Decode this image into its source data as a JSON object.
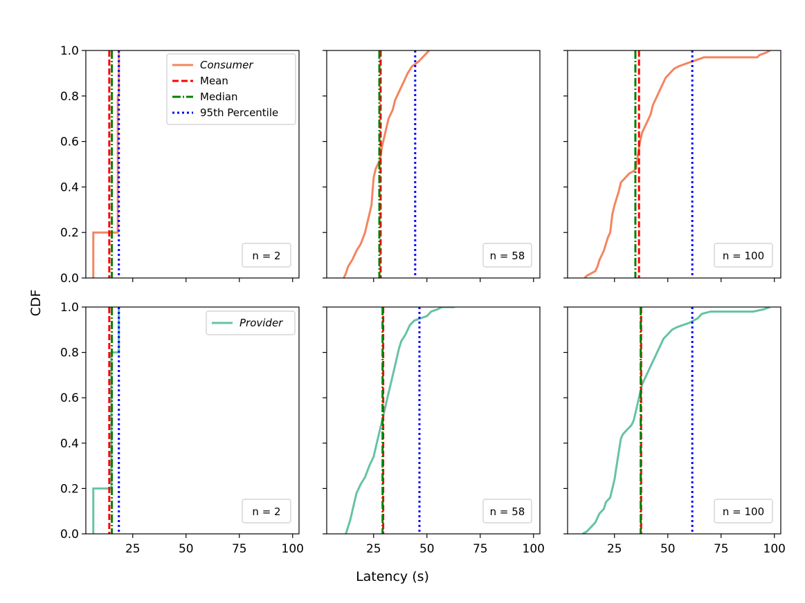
{
  "figure": {
    "ylabel": "CDF",
    "xlabel": "Latency (s)"
  },
  "colors": {
    "consumer": "#f4845f",
    "provider": "#66c2a5",
    "mean": "#ff0000",
    "median": "#008000",
    "p95": "#0000ff"
  },
  "chart_data": [
    {
      "type": "line",
      "series_name": "Consumer",
      "n_label": "n = 2",
      "xlim": [
        3,
        103
      ],
      "ylim": [
        0,
        1
      ],
      "xticks": [
        25,
        50,
        75,
        100
      ],
      "yticks": [
        0.0,
        0.2,
        0.4,
        0.6,
        0.8,
        1.0
      ],
      "cdf": [
        [
          6.5,
          0
        ],
        [
          6.5,
          0.2
        ],
        [
          18,
          0.2
        ],
        [
          18,
          0.8
        ],
        [
          18.5,
          0.8
        ],
        [
          18.5,
          1.0
        ]
      ],
      "mean": 14.0,
      "median": 15.2,
      "p95": 18.5,
      "legend": [
        "Consumer",
        "Mean",
        "Median",
        "95th Percentile"
      ]
    },
    {
      "type": "line",
      "series_name": "Consumer",
      "n_label": "n = 58",
      "xlim": [
        3,
        103
      ],
      "ylim": [
        0,
        1
      ],
      "xticks": [
        25,
        50,
        75,
        100
      ],
      "cdf": [
        [
          11,
          0
        ],
        [
          12,
          0.02
        ],
        [
          13,
          0.05
        ],
        [
          15,
          0.08
        ],
        [
          17,
          0.12
        ],
        [
          19,
          0.15
        ],
        [
          21,
          0.2
        ],
        [
          22,
          0.24
        ],
        [
          23,
          0.28
        ],
        [
          24,
          0.32
        ],
        [
          24.5,
          0.38
        ],
        [
          25,
          0.44
        ],
        [
          26,
          0.48
        ],
        [
          27,
          0.5
        ],
        [
          28,
          0.52
        ],
        [
          29,
          0.58
        ],
        [
          30,
          0.62
        ],
        [
          31,
          0.66
        ],
        [
          32,
          0.7
        ],
        [
          34,
          0.74
        ],
        [
          35,
          0.78
        ],
        [
          37,
          0.82
        ],
        [
          39,
          0.86
        ],
        [
          41,
          0.9
        ],
        [
          43,
          0.93
        ],
        [
          46,
          0.95
        ],
        [
          48,
          0.97
        ],
        [
          50,
          0.99
        ],
        [
          51,
          1.0
        ]
      ],
      "mean": 28.3,
      "median": 27.7,
      "p95": 44.5
    },
    {
      "type": "line",
      "series_name": "Consumer",
      "n_label": "n = 100",
      "xlim": [
        3,
        103
      ],
      "ylim": [
        0,
        1
      ],
      "xticks": [
        25,
        50,
        75,
        100
      ],
      "cdf": [
        [
          11,
          0
        ],
        [
          12,
          0.01
        ],
        [
          14,
          0.02
        ],
        [
          16,
          0.03
        ],
        [
          17,
          0.05
        ],
        [
          18,
          0.08
        ],
        [
          19,
          0.1
        ],
        [
          20,
          0.12
        ],
        [
          21,
          0.15
        ],
        [
          22,
          0.18
        ],
        [
          23,
          0.2
        ],
        [
          23.5,
          0.24
        ],
        [
          24,
          0.28
        ],
        [
          25,
          0.32
        ],
        [
          26,
          0.35
        ],
        [
          27,
          0.38
        ],
        [
          28,
          0.42
        ],
        [
          30,
          0.44
        ],
        [
          32,
          0.46
        ],
        [
          34,
          0.47
        ],
        [
          35,
          0.48
        ],
        [
          36,
          0.54
        ],
        [
          37,
          0.6
        ],
        [
          38,
          0.64
        ],
        [
          40,
          0.68
        ],
        [
          42,
          0.72
        ],
        [
          43,
          0.76
        ],
        [
          45,
          0.8
        ],
        [
          47,
          0.84
        ],
        [
          49,
          0.88
        ],
        [
          51,
          0.9
        ],
        [
          53,
          0.92
        ],
        [
          55,
          0.93
        ],
        [
          58,
          0.94
        ],
        [
          61,
          0.95
        ],
        [
          64,
          0.96
        ],
        [
          67,
          0.97
        ],
        [
          79,
          0.97
        ],
        [
          92,
          0.97
        ],
        [
          93,
          0.98
        ],
        [
          96,
          0.99
        ],
        [
          98,
          1.0
        ]
      ],
      "mean": 36.5,
      "median": 34.8,
      "p95": 61.5
    },
    {
      "type": "line",
      "series_name": "Provider",
      "n_label": "n = 2",
      "xlim": [
        3,
        103
      ],
      "ylim": [
        0,
        1
      ],
      "xticks": [
        25,
        50,
        75,
        100
      ],
      "yticks": [
        0.0,
        0.2,
        0.4,
        0.6,
        0.8,
        1.0
      ],
      "cdf": [
        [
          6.5,
          0
        ],
        [
          6.5,
          0.2
        ],
        [
          15,
          0.2
        ],
        [
          15,
          0.8
        ],
        [
          18.5,
          0.8
        ],
        [
          18.5,
          1.0
        ]
      ],
      "mean": 14.0,
      "median": 15.2,
      "p95": 18.5,
      "legend": [
        "Provider"
      ]
    },
    {
      "type": "line",
      "series_name": "Provider",
      "n_label": "n = 58",
      "xlim": [
        3,
        103
      ],
      "ylim": [
        0,
        1
      ],
      "xticks": [
        25,
        50,
        75,
        100
      ],
      "cdf": [
        [
          12,
          0
        ],
        [
          13,
          0.03
        ],
        [
          14,
          0.06
        ],
        [
          15,
          0.1
        ],
        [
          16,
          0.14
        ],
        [
          17,
          0.18
        ],
        [
          18,
          0.2
        ],
        [
          19,
          0.22
        ],
        [
          21,
          0.25
        ],
        [
          23,
          0.3
        ],
        [
          25,
          0.34
        ],
        [
          26,
          0.38
        ],
        [
          27,
          0.42
        ],
        [
          28,
          0.46
        ],
        [
          29,
          0.5
        ],
        [
          30,
          0.54
        ],
        [
          31,
          0.58
        ],
        [
          32,
          0.62
        ],
        [
          33,
          0.66
        ],
        [
          34,
          0.7
        ],
        [
          35,
          0.74
        ],
        [
          36,
          0.78
        ],
        [
          37,
          0.82
        ],
        [
          38,
          0.85
        ],
        [
          40,
          0.88
        ],
        [
          42,
          0.92
        ],
        [
          44,
          0.94
        ],
        [
          47,
          0.95
        ],
        [
          50,
          0.96
        ],
        [
          52,
          0.98
        ],
        [
          55,
          0.99
        ],
        [
          57,
          1.0
        ],
        [
          63,
          1.0
        ]
      ],
      "mean": 29.5,
      "median": 29.2,
      "p95": 46.5
    },
    {
      "type": "line",
      "series_name": "Provider",
      "n_label": "n = 100",
      "xlim": [
        3,
        103
      ],
      "ylim": [
        0,
        1
      ],
      "xticks": [
        25,
        50,
        75,
        100
      ],
      "cdf": [
        [
          10,
          0
        ],
        [
          12,
          0.01
        ],
        [
          14,
          0.03
        ],
        [
          16,
          0.05
        ],
        [
          17,
          0.07
        ],
        [
          18,
          0.09
        ],
        [
          20,
          0.11
        ],
        [
          21,
          0.14
        ],
        [
          23,
          0.16
        ],
        [
          24,
          0.2
        ],
        [
          25,
          0.24
        ],
        [
          26,
          0.3
        ],
        [
          27,
          0.36
        ],
        [
          28,
          0.42
        ],
        [
          29,
          0.44
        ],
        [
          31,
          0.46
        ],
        [
          33,
          0.48
        ],
        [
          34,
          0.5
        ],
        [
          35,
          0.54
        ],
        [
          36,
          0.58
        ],
        [
          37,
          0.62
        ],
        [
          38,
          0.66
        ],
        [
          40,
          0.7
        ],
        [
          42,
          0.74
        ],
        [
          44,
          0.78
        ],
        [
          46,
          0.82
        ],
        [
          48,
          0.86
        ],
        [
          50,
          0.88
        ],
        [
          52,
          0.9
        ],
        [
          54,
          0.91
        ],
        [
          57,
          0.92
        ],
        [
          60,
          0.93
        ],
        [
          62,
          0.94
        ],
        [
          64,
          0.95
        ],
        [
          66,
          0.97
        ],
        [
          70,
          0.98
        ],
        [
          80,
          0.98
        ],
        [
          90,
          0.98
        ],
        [
          95,
          0.99
        ],
        [
          98,
          1.0
        ]
      ],
      "mean": 37.5,
      "median": 37.3,
      "p95": 61.5
    }
  ]
}
